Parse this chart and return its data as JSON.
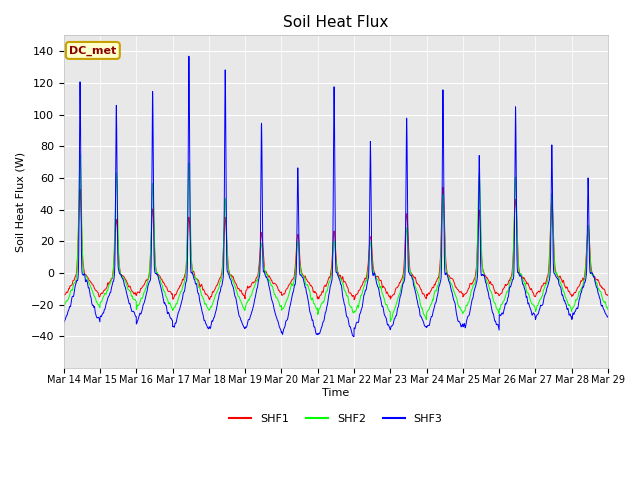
{
  "title": "Soil Heat Flux",
  "ylabel": "Soil Heat Flux (W)",
  "xlabel": "Time",
  "ylim": [
    -60,
    150
  ],
  "yticks": [
    -40,
    -20,
    0,
    20,
    40,
    60,
    80,
    100,
    120,
    140
  ],
  "fig_bg_color": "#ffffff",
  "plot_bg_color": "#e8e8e8",
  "legend_label": "DC_met",
  "series": [
    "SHF1",
    "SHF2",
    "SHF3"
  ],
  "colors": [
    "red",
    "lime",
    "blue"
  ],
  "n_days": 15,
  "start_day": 14,
  "shf3_peaks": [
    122,
    106,
    115,
    138,
    128,
    95,
    67,
    118,
    84,
    100,
    118,
    75,
    108,
    82,
    60
  ],
  "shf1_peaks": [
    53,
    35,
    40,
    35,
    35,
    25,
    25,
    26,
    23,
    38,
    54,
    39,
    47,
    44,
    30
  ],
  "shf2_peaks": [
    75,
    63,
    57,
    70,
    48,
    20,
    20,
    20,
    20,
    30,
    50,
    63,
    62,
    50,
    30
  ],
  "shf3_troughs": [
    -33,
    -30,
    -33,
    -38,
    -38,
    -38,
    -42,
    -43,
    -38,
    -38,
    -38,
    -38,
    -30,
    -30,
    -30
  ],
  "shf1_troughs": [
    -18,
    -18,
    -18,
    -20,
    -20,
    -15,
    -18,
    -20,
    -20,
    -20,
    -18,
    -18,
    -18,
    -18,
    -18
  ],
  "shf2_troughs": [
    -25,
    -22,
    -27,
    -28,
    -28,
    -25,
    -28,
    -30,
    -30,
    -35,
    -30,
    -30,
    -27,
    -27,
    -27
  ]
}
